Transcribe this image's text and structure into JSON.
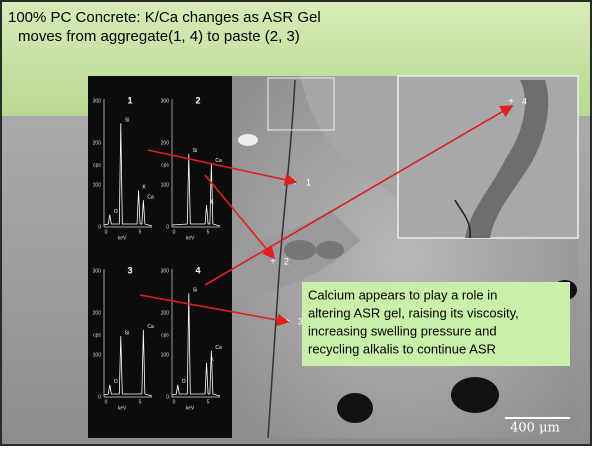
{
  "title": {
    "line1": "100% PC Concrete: K/Ca changes as ASR Gel",
    "line2": "moves from aggregate(1, 4) to paste (2, 3)"
  },
  "spectra": {
    "axis": {
      "yticks": [
        "300",
        "200",
        "100",
        "0"
      ],
      "ylabel": "cps",
      "xticks": [
        "0",
        "5"
      ],
      "xlabel": "keV"
    },
    "panels": [
      {
        "number": "1",
        "peaks": [
          "Si",
          "O",
          "K",
          "Ca"
        ]
      },
      {
        "number": "2",
        "peaks": [
          "Si",
          "Ca",
          "K"
        ]
      },
      {
        "number": "3",
        "peaks": [
          "Si",
          "O",
          "Ca"
        ]
      },
      {
        "number": "4",
        "peaks": [
          "Si",
          "O",
          "K",
          "Ca"
        ]
      }
    ]
  },
  "micrograph": {
    "points": [
      "1",
      "2",
      "3",
      "4"
    ],
    "scale_bar": "400 μm"
  },
  "callout": {
    "lines": [
      "Calcium appears to play a role in",
      "altering ASR gel, raising its viscosity,",
      "increasing swelling pressure and",
      "recycling alkalis to continue ASR"
    ]
  }
}
